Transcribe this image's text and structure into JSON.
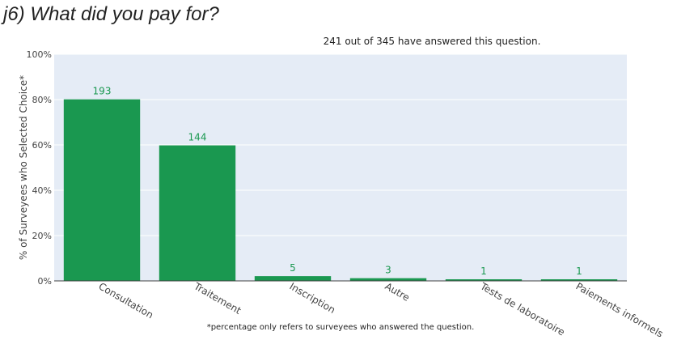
{
  "question": {
    "title": "j6) What did you pay for?"
  },
  "chart_data": {
    "type": "bar",
    "subtitle": "241 out of 345 have answered this question.",
    "ylabel": "% of Surveyees who Selected Choice*",
    "xlabel": "",
    "footnote": "*percentage only refers to surveyees who answered the question.",
    "ylim": [
      0,
      100
    ],
    "yticks": [
      0,
      20,
      40,
      60,
      80,
      100
    ],
    "ytick_suffix": "%",
    "grid": true,
    "categories": [
      "Consultation",
      "Traitement",
      "Inscription",
      "Autre",
      "Tests de laboratoire",
      "Paiements informels"
    ],
    "values": [
      80.1,
      59.8,
      2.1,
      1.2,
      0.4,
      0.4
    ],
    "data_labels": [
      "193",
      "144",
      "5",
      "3",
      "1",
      "1"
    ],
    "colors": {
      "bar": "#1a9850",
      "label": "#1a9850",
      "plot_bg": "#e5ecf6",
      "grid": "#ffffff"
    }
  }
}
